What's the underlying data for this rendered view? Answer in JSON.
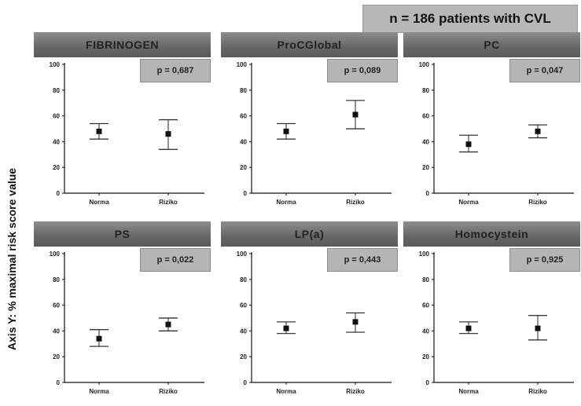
{
  "header": {
    "n_label": "n = 186 patients with CVL"
  },
  "y_axis_title": "Axis Y:  % maximal risk score value",
  "chart_data": [
    {
      "type": "scatter",
      "title": "FIBRINOGEN",
      "p_label": "p = 0,687",
      "categories": [
        "Norma",
        "Riziko"
      ],
      "mean": [
        48,
        46
      ],
      "lower": [
        42,
        34
      ],
      "upper": [
        54,
        57
      ],
      "ylim": [
        0,
        100
      ],
      "yticks": [
        0,
        20,
        40,
        60,
        80,
        100
      ]
    },
    {
      "type": "scatter",
      "title": "ProCGlobal",
      "p_label": "p = 0,089",
      "categories": [
        "Norma",
        "Riziko"
      ],
      "mean": [
        48,
        61
      ],
      "lower": [
        42,
        50
      ],
      "upper": [
        54,
        72
      ],
      "ylim": [
        0,
        100
      ],
      "yticks": [
        0,
        20,
        40,
        60,
        80,
        100
      ]
    },
    {
      "type": "scatter",
      "title": "PC",
      "p_label": "p = 0,047",
      "categories": [
        "Norma",
        "Riziko"
      ],
      "mean": [
        38,
        48
      ],
      "lower": [
        32,
        43
      ],
      "upper": [
        45,
        53
      ],
      "ylim": [
        0,
        100
      ],
      "yticks": [
        0,
        20,
        40,
        60,
        80,
        100
      ]
    },
    {
      "type": "scatter",
      "title": "PS",
      "p_label": "p = 0,022",
      "categories": [
        "Norma",
        "Riziko"
      ],
      "mean": [
        34,
        45
      ],
      "lower": [
        28,
        40
      ],
      "upper": [
        41,
        50
      ],
      "ylim": [
        0,
        100
      ],
      "yticks": [
        0,
        20,
        40,
        60,
        80,
        100
      ]
    },
    {
      "type": "scatter",
      "title": "LP(a)",
      "p_label": "p = 0,443",
      "categories": [
        "Norma",
        "Riziko"
      ],
      "mean": [
        42,
        47
      ],
      "lower": [
        38,
        39
      ],
      "upper": [
        47,
        54
      ],
      "ylim": [
        0,
        100
      ],
      "yticks": [
        0,
        20,
        40,
        60,
        80,
        100
      ]
    },
    {
      "type": "scatter",
      "title": "Homocystein",
      "p_label": "p = 0,925",
      "categories": [
        "Norma",
        "Riziko"
      ],
      "mean": [
        42,
        42
      ],
      "lower": [
        38,
        33
      ],
      "upper": [
        47,
        52
      ],
      "ylim": [
        0,
        100
      ],
      "yticks": [
        0,
        20,
        40,
        60,
        80,
        100
      ]
    }
  ]
}
